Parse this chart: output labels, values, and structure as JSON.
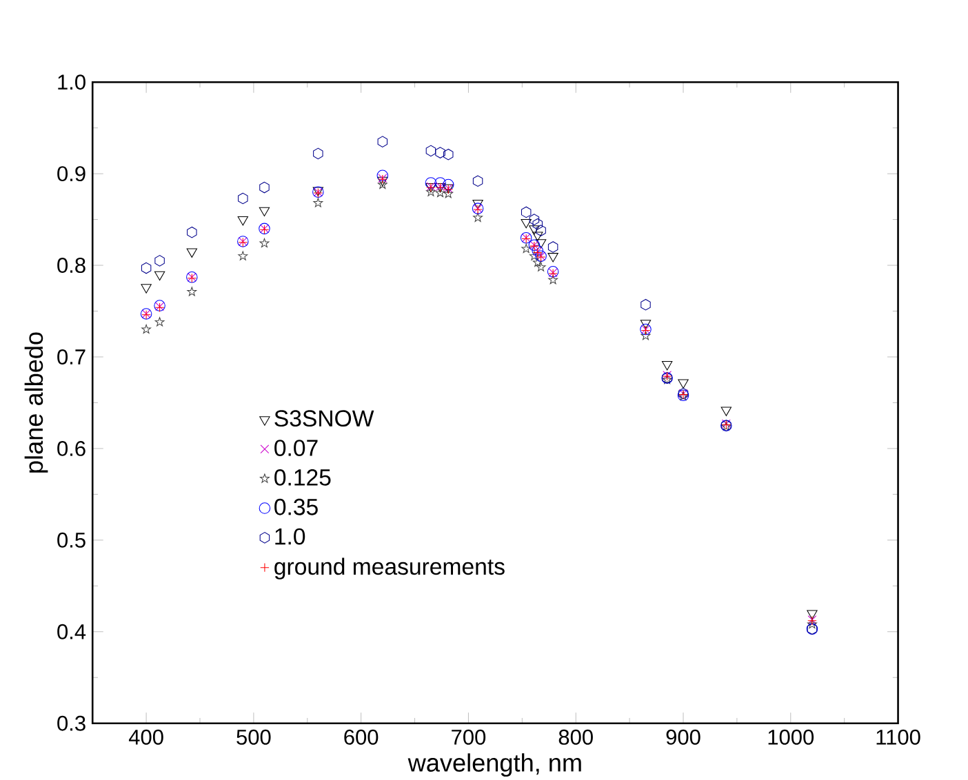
{
  "chart_data": {
    "type": "scatter",
    "xlabel": "wavelength, nm",
    "ylabel": "plane albedo",
    "x": [
      400,
      412.5,
      442.5,
      490,
      510,
      560,
      620,
      665,
      673.75,
      681.25,
      708.75,
      753.75,
      761.25,
      764.375,
      767.5,
      778.75,
      865,
      885,
      900,
      940,
      1020
    ],
    "series": [
      {
        "name": "S3SNOW",
        "color": "#000000",
        "marker": "triangle",
        "values": [
          0.776,
          0.79,
          0.815,
          0.85,
          0.86,
          0.882,
          0.893,
          0.886,
          0.886,
          0.885,
          0.868,
          0.847,
          0.84,
          0.833,
          0.825,
          0.81,
          0.737,
          0.692,
          0.672,
          0.642,
          0.42
        ]
      },
      {
        "name": "0.07",
        "color": "#cc00cc",
        "marker": "cross",
        "values": [
          0.747,
          0.755,
          0.787,
          0.826,
          0.84,
          0.88,
          0.895,
          0.886,
          0.886,
          0.884,
          0.862,
          0.83,
          0.822,
          0.815,
          0.81,
          0.792,
          0.73,
          0.68,
          0.66,
          0.627,
          0.413
        ]
      },
      {
        "name": "0.125",
        "color": "#404040",
        "marker": "star",
        "values": [
          0.73,
          0.738,
          0.771,
          0.81,
          0.824,
          0.868,
          0.888,
          0.88,
          0.879,
          0.878,
          0.852,
          0.818,
          0.81,
          0.803,
          0.798,
          0.784,
          0.723,
          0.675,
          0.657,
          0.624,
          0.408
        ]
      },
      {
        "name": "0.35",
        "color": "#0000ff",
        "marker": "circle",
        "values": [
          0.747,
          0.756,
          0.787,
          0.826,
          0.84,
          0.88,
          0.898,
          0.89,
          0.89,
          0.888,
          0.862,
          0.83,
          0.822,
          0.816,
          0.81,
          0.793,
          0.73,
          0.677,
          0.658,
          0.625,
          0.403
        ]
      },
      {
        "name": "1.0",
        "color": "#00008b",
        "values": [
          0.797,
          0.805,
          0.836,
          0.873,
          0.885,
          0.922,
          0.935,
          0.925,
          0.923,
          0.921,
          0.892,
          0.858,
          0.85,
          0.845,
          0.838,
          0.82,
          0.757,
          0.677,
          0.66,
          0.625,
          0.403
        ]
      },
      {
        "name": "ground measurements",
        "color": "#ff0000",
        "marker": "plus",
        "values": [
          0.746,
          0.754,
          0.786,
          0.825,
          0.839,
          0.879,
          0.894,
          0.885,
          0.885,
          0.883,
          0.861,
          0.829,
          0.821,
          0.814,
          0.809,
          0.791,
          0.729,
          0.679,
          0.659,
          0.626,
          0.412
        ]
      }
    ],
    "xlim": [
      350,
      1100
    ],
    "xticks": [
      400,
      500,
      600,
      700,
      800,
      900,
      1000,
      1100
    ],
    "ylim": [
      0.3,
      1.0
    ],
    "yticks": [
      0.3,
      0.4,
      0.5,
      0.6,
      0.7,
      0.8,
      0.9,
      {
        "value": 1,
        "label": "1.0"
      }
    ],
    "grid": false,
    "legend": "left"
  }
}
